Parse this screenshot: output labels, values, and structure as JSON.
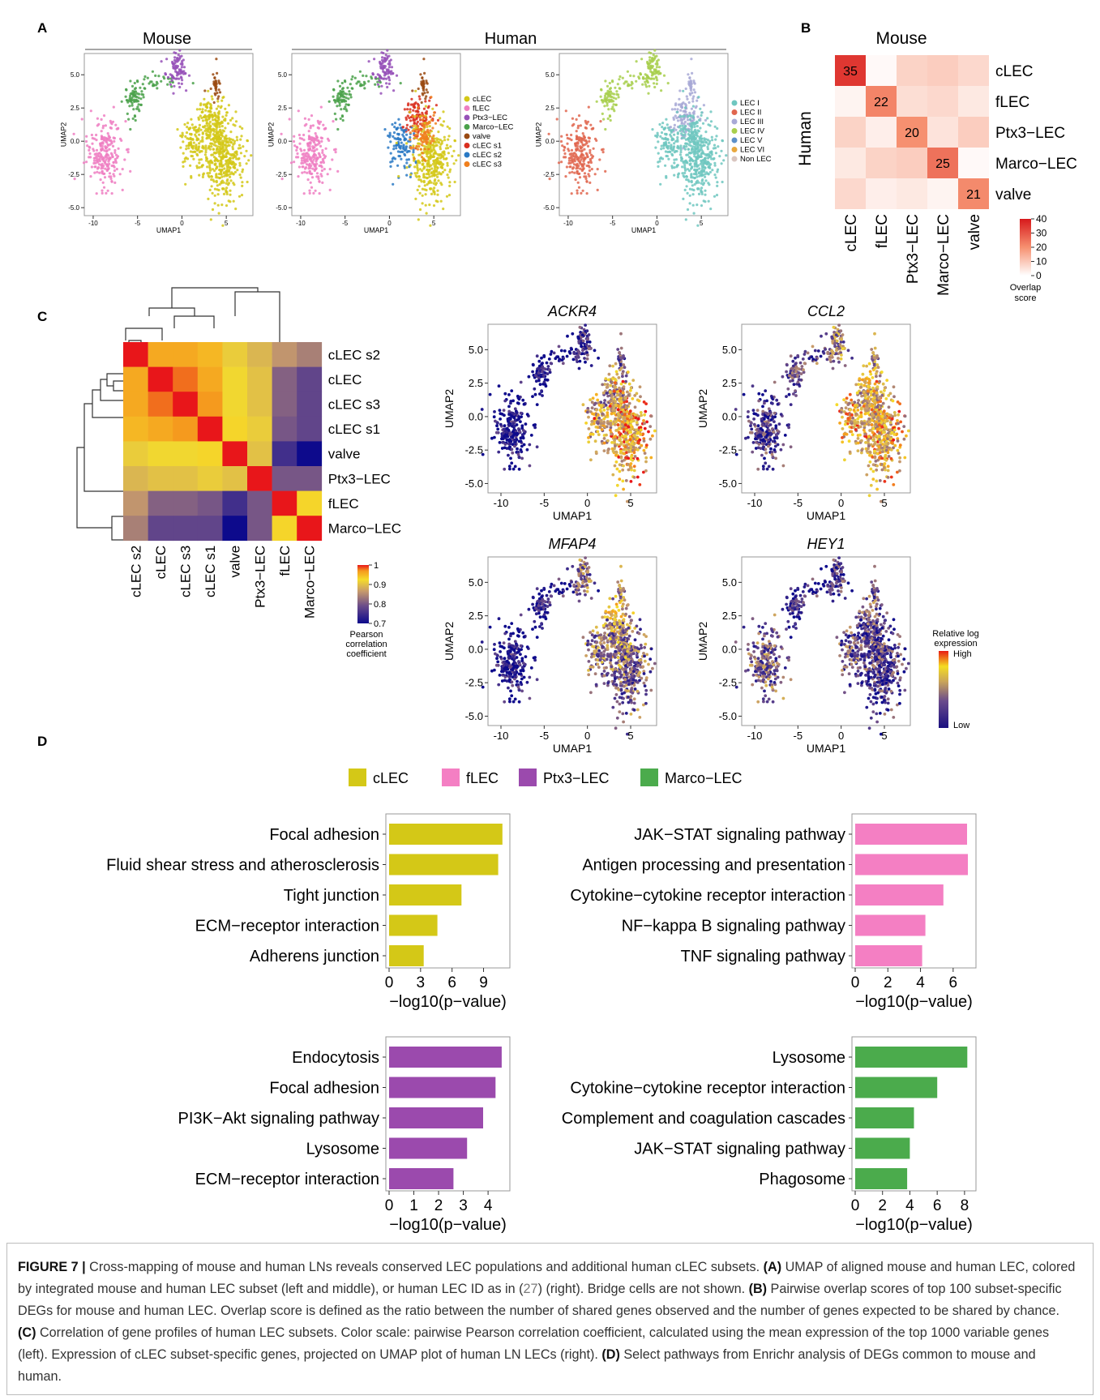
{
  "panel_labels": {
    "A": "A",
    "B": "B",
    "C": "C",
    "D": "D"
  },
  "panelA": {
    "headers": {
      "mouse": "Mouse",
      "human": "Human"
    },
    "xlabel": "UMAP1",
    "ylabel": "UMAP2",
    "xticks": [
      "-10",
      "-5",
      "0",
      "5"
    ],
    "yticks": [
      "5.0",
      "2.5",
      "0.0",
      "-2.5",
      "-5.0"
    ],
    "legend_subsets": [
      {
        "label": "cLEC",
        "color": "#d4c817"
      },
      {
        "label": "fLEC",
        "color": "#ee7ec2"
      },
      {
        "label": "Ptx3−LEC",
        "color": "#9651b8"
      },
      {
        "label": "Marco−LEC",
        "color": "#4aa14a"
      },
      {
        "label": "valve",
        "color": "#9a4a12"
      },
      {
        "label": "cLEC s1",
        "color": "#d92e1e"
      },
      {
        "label": "cLEC s2",
        "color": "#2a79c4"
      },
      {
        "label": "cLEC s3",
        "color": "#f07f1d"
      }
    ],
    "legend_ids": [
      {
        "label": "LEC I",
        "color": "#6fc7c0"
      },
      {
        "label": "LEC II",
        "color": "#e0664f"
      },
      {
        "label": "LEC III",
        "color": "#a8a9d6"
      },
      {
        "label": "LEC IV",
        "color": "#a8cf4d"
      },
      {
        "label": "LEC V",
        "color": "#5d90c9"
      },
      {
        "label": "LEC VI",
        "color": "#e8a83e"
      },
      {
        "label": "Non LEC",
        "color": "#d9c6c0"
      }
    ]
  },
  "panelB": {
    "title": "Mouse",
    "ylabel": "Human",
    "rows": [
      "cLEC",
      "fLEC",
      "Ptx3−LEC",
      "Marco−LEC",
      "valve"
    ],
    "cols": [
      "cLEC",
      "fLEC",
      "Ptx3−LEC",
      "Marco−LEC",
      "valve"
    ],
    "diag_labels": [
      "35",
      "22",
      "20",
      "25",
      "21"
    ],
    "scale_ticks": [
      "40",
      "30",
      "20",
      "10",
      "0"
    ],
    "scale_title_1": "Overlap",
    "scale_title_2": "score"
  },
  "panelC": {
    "labels": [
      "cLEC s2",
      "cLEC",
      "cLEC s3",
      "cLEC s1",
      "valve",
      "Ptx3−LEC",
      "fLEC",
      "Marco−LEC"
    ],
    "scale_ticks": [
      "1",
      "0.9",
      "0.8",
      "0.7"
    ],
    "scale_title_1": "Pearson",
    "scale_title_2": "correlation",
    "scale_title_3": "coefficient",
    "gene_titles": [
      "ACKR4",
      "CCL2",
      "MFAP4",
      "HEY1"
    ],
    "xlabel": "UMAP1",
    "ylabel": "UMAP2",
    "xticks": [
      "-10",
      "-5",
      "0",
      "5"
    ],
    "yticks": [
      "5.0",
      "2.5",
      "0.0",
      "-2.5",
      "-5.0"
    ],
    "expr_legend_1": "Relative log",
    "expr_legend_2": "expression",
    "expr_high": "High",
    "expr_low": "Low"
  },
  "panelD": {
    "legend": [
      {
        "label": "cLEC",
        "color": "#d4c817"
      },
      {
        "label": "fLEC",
        "color": "#f47fc3"
      },
      {
        "label": "Ptx3−LEC",
        "color": "#9b4aad"
      },
      {
        "label": "Marco−LEC",
        "color": "#4bab4c"
      }
    ]
  },
  "chart_data": [
    {
      "type": "heatmap",
      "title": "Mouse",
      "ylabel": "Human",
      "rows": [
        "cLEC",
        "fLEC",
        "Ptx3−LEC",
        "Marco−LEC",
        "valve"
      ],
      "cols": [
        "cLEC",
        "fLEC",
        "Ptx3−LEC",
        "Marco−LEC",
        "valve"
      ],
      "values": [
        [
          35,
          1,
          8,
          9,
          7
        ],
        [
          2,
          22,
          6,
          7,
          4
        ],
        [
          8,
          3,
          20,
          5,
          9
        ],
        [
          4,
          8,
          9,
          25,
          1
        ],
        [
          7,
          3,
          4,
          2,
          21
        ]
      ],
      "range": [
        0,
        40
      ],
      "legend_title": "Overlap score"
    },
    {
      "type": "heatmap",
      "labels": [
        "cLEC s2",
        "cLEC",
        "cLEC s3",
        "cLEC s1",
        "valve",
        "Ptx3−LEC",
        "fLEC",
        "Marco−LEC"
      ],
      "values": [
        [
          1.0,
          0.96,
          0.96,
          0.95,
          0.91,
          0.89,
          0.86,
          0.84
        ],
        [
          0.96,
          1.0,
          0.98,
          0.96,
          0.92,
          0.9,
          0.81,
          0.78
        ],
        [
          0.96,
          0.98,
          1.0,
          0.97,
          0.92,
          0.9,
          0.81,
          0.78
        ],
        [
          0.95,
          0.96,
          0.97,
          1.0,
          0.93,
          0.91,
          0.8,
          0.78
        ],
        [
          0.91,
          0.92,
          0.92,
          0.93,
          1.0,
          0.9,
          0.75,
          0.7
        ],
        [
          0.89,
          0.9,
          0.9,
          0.91,
          0.9,
          1.0,
          0.8,
          0.8
        ],
        [
          0.86,
          0.81,
          0.81,
          0.8,
          0.75,
          0.8,
          1.0,
          0.93
        ],
        [
          0.84,
          0.78,
          0.78,
          0.78,
          0.7,
          0.8,
          0.93,
          1.0
        ]
      ],
      "range": [
        0.7,
        1
      ],
      "legend_title": "Pearson correlation coefficient"
    },
    {
      "type": "bar",
      "orientation": "horizontal",
      "series_name": "cLEC",
      "categories": [
        "Focal adhesion",
        "Fluid shear stress and atherosclerosis",
        "Tight junction",
        "ECM−receptor interaction",
        "Adherens junction"
      ],
      "values": [
        10.8,
        10.4,
        6.9,
        4.6,
        3.3
      ],
      "xlabel": "−log10(p−value)",
      "xticks": [
        0,
        3,
        6,
        9
      ],
      "xlim": [
        0,
        11.2
      ],
      "color": "#d4c817"
    },
    {
      "type": "bar",
      "orientation": "horizontal",
      "series_name": "fLEC",
      "categories": [
        "JAK−STAT signaling pathway",
        "Antigen processing and presentation",
        "Cytokine−cytokine receptor interaction",
        "NF−kappa B signaling pathway",
        "TNF signaling pathway"
      ],
      "values": [
        6.85,
        6.9,
        5.4,
        4.3,
        4.1
      ],
      "xlabel": "−log10(p−value)",
      "xticks": [
        0,
        2,
        4,
        6
      ],
      "xlim": [
        0,
        7.2
      ],
      "color": "#f47fc3"
    },
    {
      "type": "bar",
      "orientation": "horizontal",
      "series_name": "Ptx3−LEC",
      "categories": [
        "Endocytosis",
        "Focal adhesion",
        "PI3K−Akt signaling pathway",
        "Lysosome",
        "ECM−receptor interaction"
      ],
      "values": [
        4.55,
        4.3,
        3.8,
        3.15,
        2.6
      ],
      "xlabel": "−log10(p−value)",
      "xticks": [
        0,
        1,
        2,
        3,
        4
      ],
      "xlim": [
        0,
        4.75
      ],
      "color": "#9b4aad"
    },
    {
      "type": "bar",
      "orientation": "horizontal",
      "series_name": "Marco−LEC",
      "categories": [
        "Lysosome",
        "Cytokine−cytokine receptor interaction",
        "Complement and coagulation cascades",
        "JAK−STAT signaling pathway",
        "Phagosome"
      ],
      "values": [
        8.2,
        6.0,
        4.3,
        4.0,
        3.8
      ],
      "xlabel": "−log10(p−value)",
      "xticks": [
        0,
        2,
        4,
        6,
        8
      ],
      "xlim": [
        0,
        8.6
      ],
      "color": "#4bab4c"
    }
  ],
  "caption": {
    "fig_label": "FIGURE 7 |",
    "t1": " Cross-mapping of mouse and human LNs reveals conserved LEC populations and additional human cLEC subsets. ",
    "A": "(A)",
    "t2": " UMAP of aligned mouse and human LEC, colored by integrated mouse and human LEC subset (left and middle), or human LEC ID as in (",
    "ref": "27",
    "t3": ") (right). Bridge cells are not shown. ",
    "B": "(B)",
    "t4": " Pairwise overlap scores of top 100 subset-specific DEGs for mouse and human LEC. Overlap score is defined as the ratio between the number of shared genes observed and the number of genes expected to be shared by chance. ",
    "C": "(C)",
    "t5": " Correlation of gene profiles of human LEC subsets. Color scale: pairwise Pearson correlation coefficient, calculated using the mean expression of the top 1000 variable genes (left). Expression of cLEC subset-specific genes, projected on UMAP plot of human LN LECs (right). ",
    "D": "(D)",
    "t6": " Select pathways from Enrichr analysis of DEGs common to mouse and human."
  }
}
